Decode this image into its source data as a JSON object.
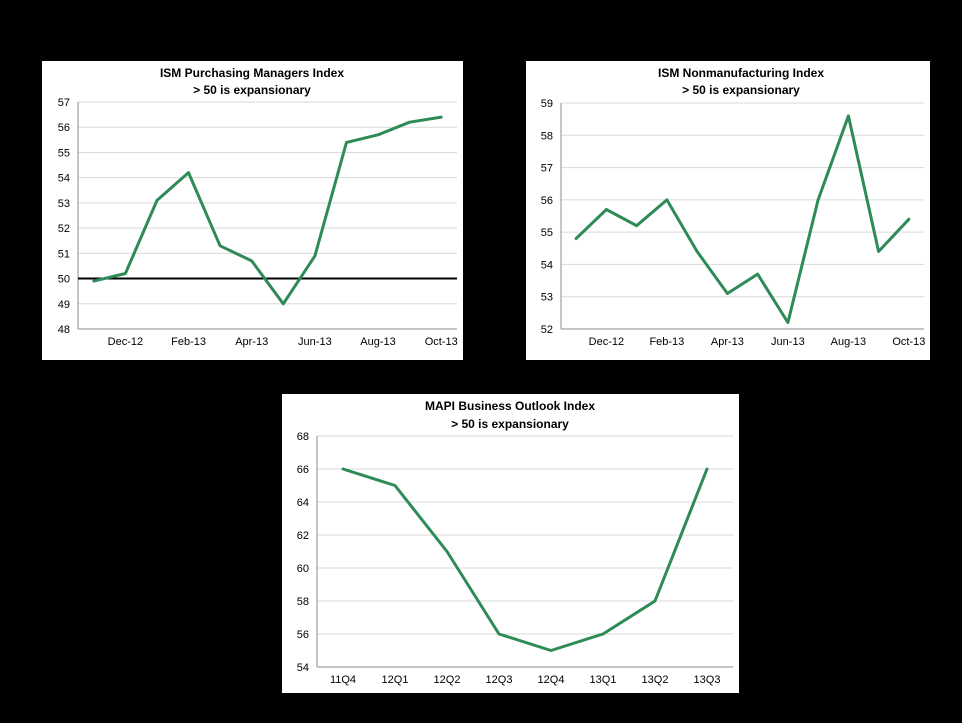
{
  "chart_data": [
    {
      "type": "line",
      "title": "ISM Purchasing Managers Index",
      "subtitle": "> 50 is expansionary",
      "y_ticks": [
        48,
        49,
        50,
        51,
        52,
        53,
        54,
        55,
        56,
        57
      ],
      "ylim": [
        48,
        57
      ],
      "x_tick_labels": [
        "Dec-12",
        "Feb-13",
        "Apr-13",
        "Jun-13",
        "Aug-13",
        "Oct-13"
      ],
      "x_tick_positions": [
        1,
        3,
        5,
        7,
        9,
        11
      ],
      "series": [
        {
          "values": [
            49.9,
            50.2,
            53.1,
            54.2,
            51.3,
            50.7,
            49.0,
            50.9,
            55.4,
            55.7,
            56.2,
            56.4
          ],
          "color": "#2e8b57"
        }
      ],
      "reference_line": {
        "y": 50,
        "color": "#000000"
      },
      "grid": true
    },
    {
      "type": "line",
      "title": "ISM Nonmanufacturing Index",
      "subtitle": "> 50 is expansionary",
      "y_ticks": [
        52,
        53,
        54,
        55,
        56,
        57,
        58,
        59
      ],
      "ylim": [
        52,
        59
      ],
      "x_tick_labels": [
        "Dec-12",
        "Feb-13",
        "Apr-13",
        "Jun-13",
        "Aug-13",
        "Oct-13"
      ],
      "x_tick_positions": [
        1,
        3,
        5,
        7,
        9,
        11
      ],
      "series": [
        {
          "values": [
            54.8,
            55.7,
            55.2,
            56.0,
            54.4,
            53.1,
            53.7,
            52.2,
            56.0,
            58.6,
            54.4,
            55.4
          ],
          "color": "#2e8b57"
        }
      ],
      "grid": true
    },
    {
      "type": "line",
      "title": "MAPI Business Outlook Index",
      "subtitle": "> 50 is expansionary",
      "categories": [
        "11Q4",
        "12Q1",
        "12Q2",
        "12Q3",
        "12Q4",
        "13Q1",
        "13Q2",
        "13Q3"
      ],
      "y_ticks": [
        54,
        56,
        58,
        60,
        62,
        64,
        66,
        68
      ],
      "ylim": [
        54,
        68
      ],
      "series": [
        {
          "values": [
            66,
            65,
            61,
            56,
            55,
            56,
            58,
            66
          ],
          "color": "#2e8b57"
        }
      ],
      "grid": true
    }
  ]
}
